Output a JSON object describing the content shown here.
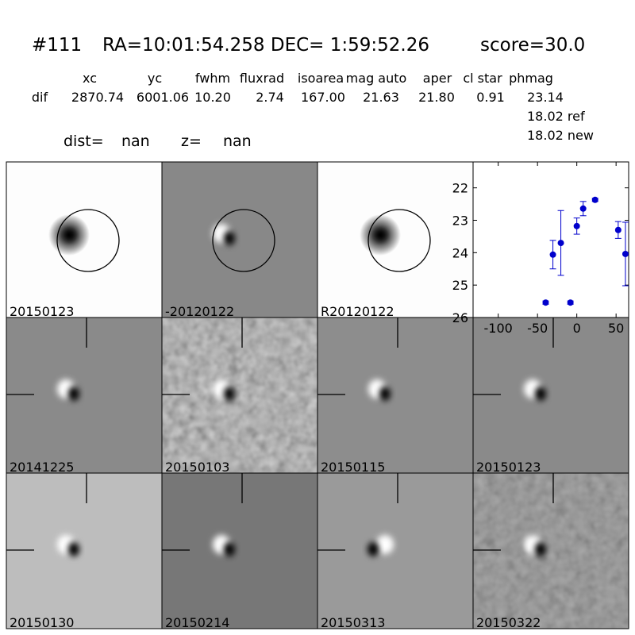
{
  "header": {
    "id": "#111",
    "coords": "RA=10:01:54.258 DEC= 1:59:52.26",
    "score": "score=30.0"
  },
  "table": {
    "columns": [
      "xc",
      "yc",
      "fwhm",
      "fluxrad",
      "isoarea",
      "mag auto",
      "aper",
      "cl star",
      "phmag"
    ],
    "rows": [
      [
        "dif",
        "2870.74",
        "6001.06",
        "10.20",
        "2.74",
        "167.00",
        "21.63",
        "21.80",
        "0.91",
        "23.14"
      ]
    ],
    "notes": [
      "18.02 ref",
      "18.02 new"
    ]
  },
  "dist": {
    "label": "dist=",
    "value": "nan"
  },
  "z": {
    "label": "z=",
    "value": "nan"
  },
  "panels": [
    "20150123",
    "-20120122",
    "R20120122",
    "20141225",
    "20150103",
    "20150115",
    "20150123",
    "20150130",
    "20150214",
    "20150313",
    "20150322"
  ],
  "highlight_panel": 6,
  "highlight_color": "#ff0000",
  "chart_data": {
    "type": "scatter",
    "color": "#0000cc",
    "x": [
      -39.6,
      -30.4,
      -20.3,
      -8.1,
      0,
      8.1,
      23.3,
      52.7,
      61.9
    ],
    "values": [
      25.54,
      24.06,
      23.7,
      25.54,
      23.18,
      22.64,
      22.37,
      23.3,
      24.04
    ],
    "errors": [
      0.05,
      0.44,
      1.0,
      0.05,
      0.25,
      0.22,
      0.05,
      0.26,
      0.98
    ],
    "xlim": [
      -132,
      66
    ],
    "ylim": [
      26,
      21.2
    ],
    "xticks": [
      -100,
      -50,
      0,
      50
    ],
    "yticks": [
      22,
      23,
      24,
      25,
      26
    ]
  }
}
